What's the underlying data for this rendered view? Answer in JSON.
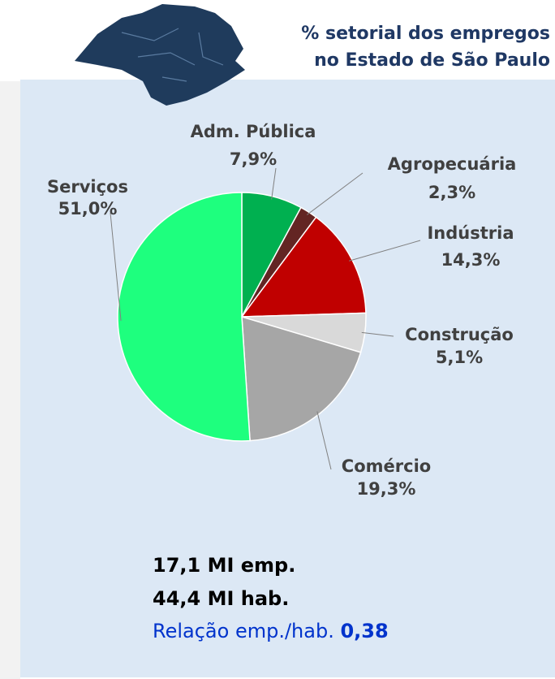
{
  "chart_data": {
    "type": "pie",
    "title": [
      "% setorial dos empregos",
      "no Estado de São Paulo"
    ],
    "categories": [
      "Adm. Pública",
      "Agropecuária",
      "Indústria",
      "Construção",
      "Comércio",
      "Serviços"
    ],
    "values": [
      7.9,
      2.3,
      14.3,
      5.1,
      19.3,
      51.0
    ],
    "value_labels": [
      "7,9%",
      "2,3%",
      "14,3%",
      "5,1%",
      "19,3%",
      "51,0%"
    ],
    "colors": [
      "#00b050",
      "#632523",
      "#c00000",
      "#d9d9d9",
      "#a6a6a6",
      "#1eff7e"
    ]
  },
  "summary": {
    "employment": "17,1 MI emp.",
    "population": "44,4 MI hab.",
    "ratio_label": "Relação emp./hab.",
    "ratio_value": "0,38"
  }
}
